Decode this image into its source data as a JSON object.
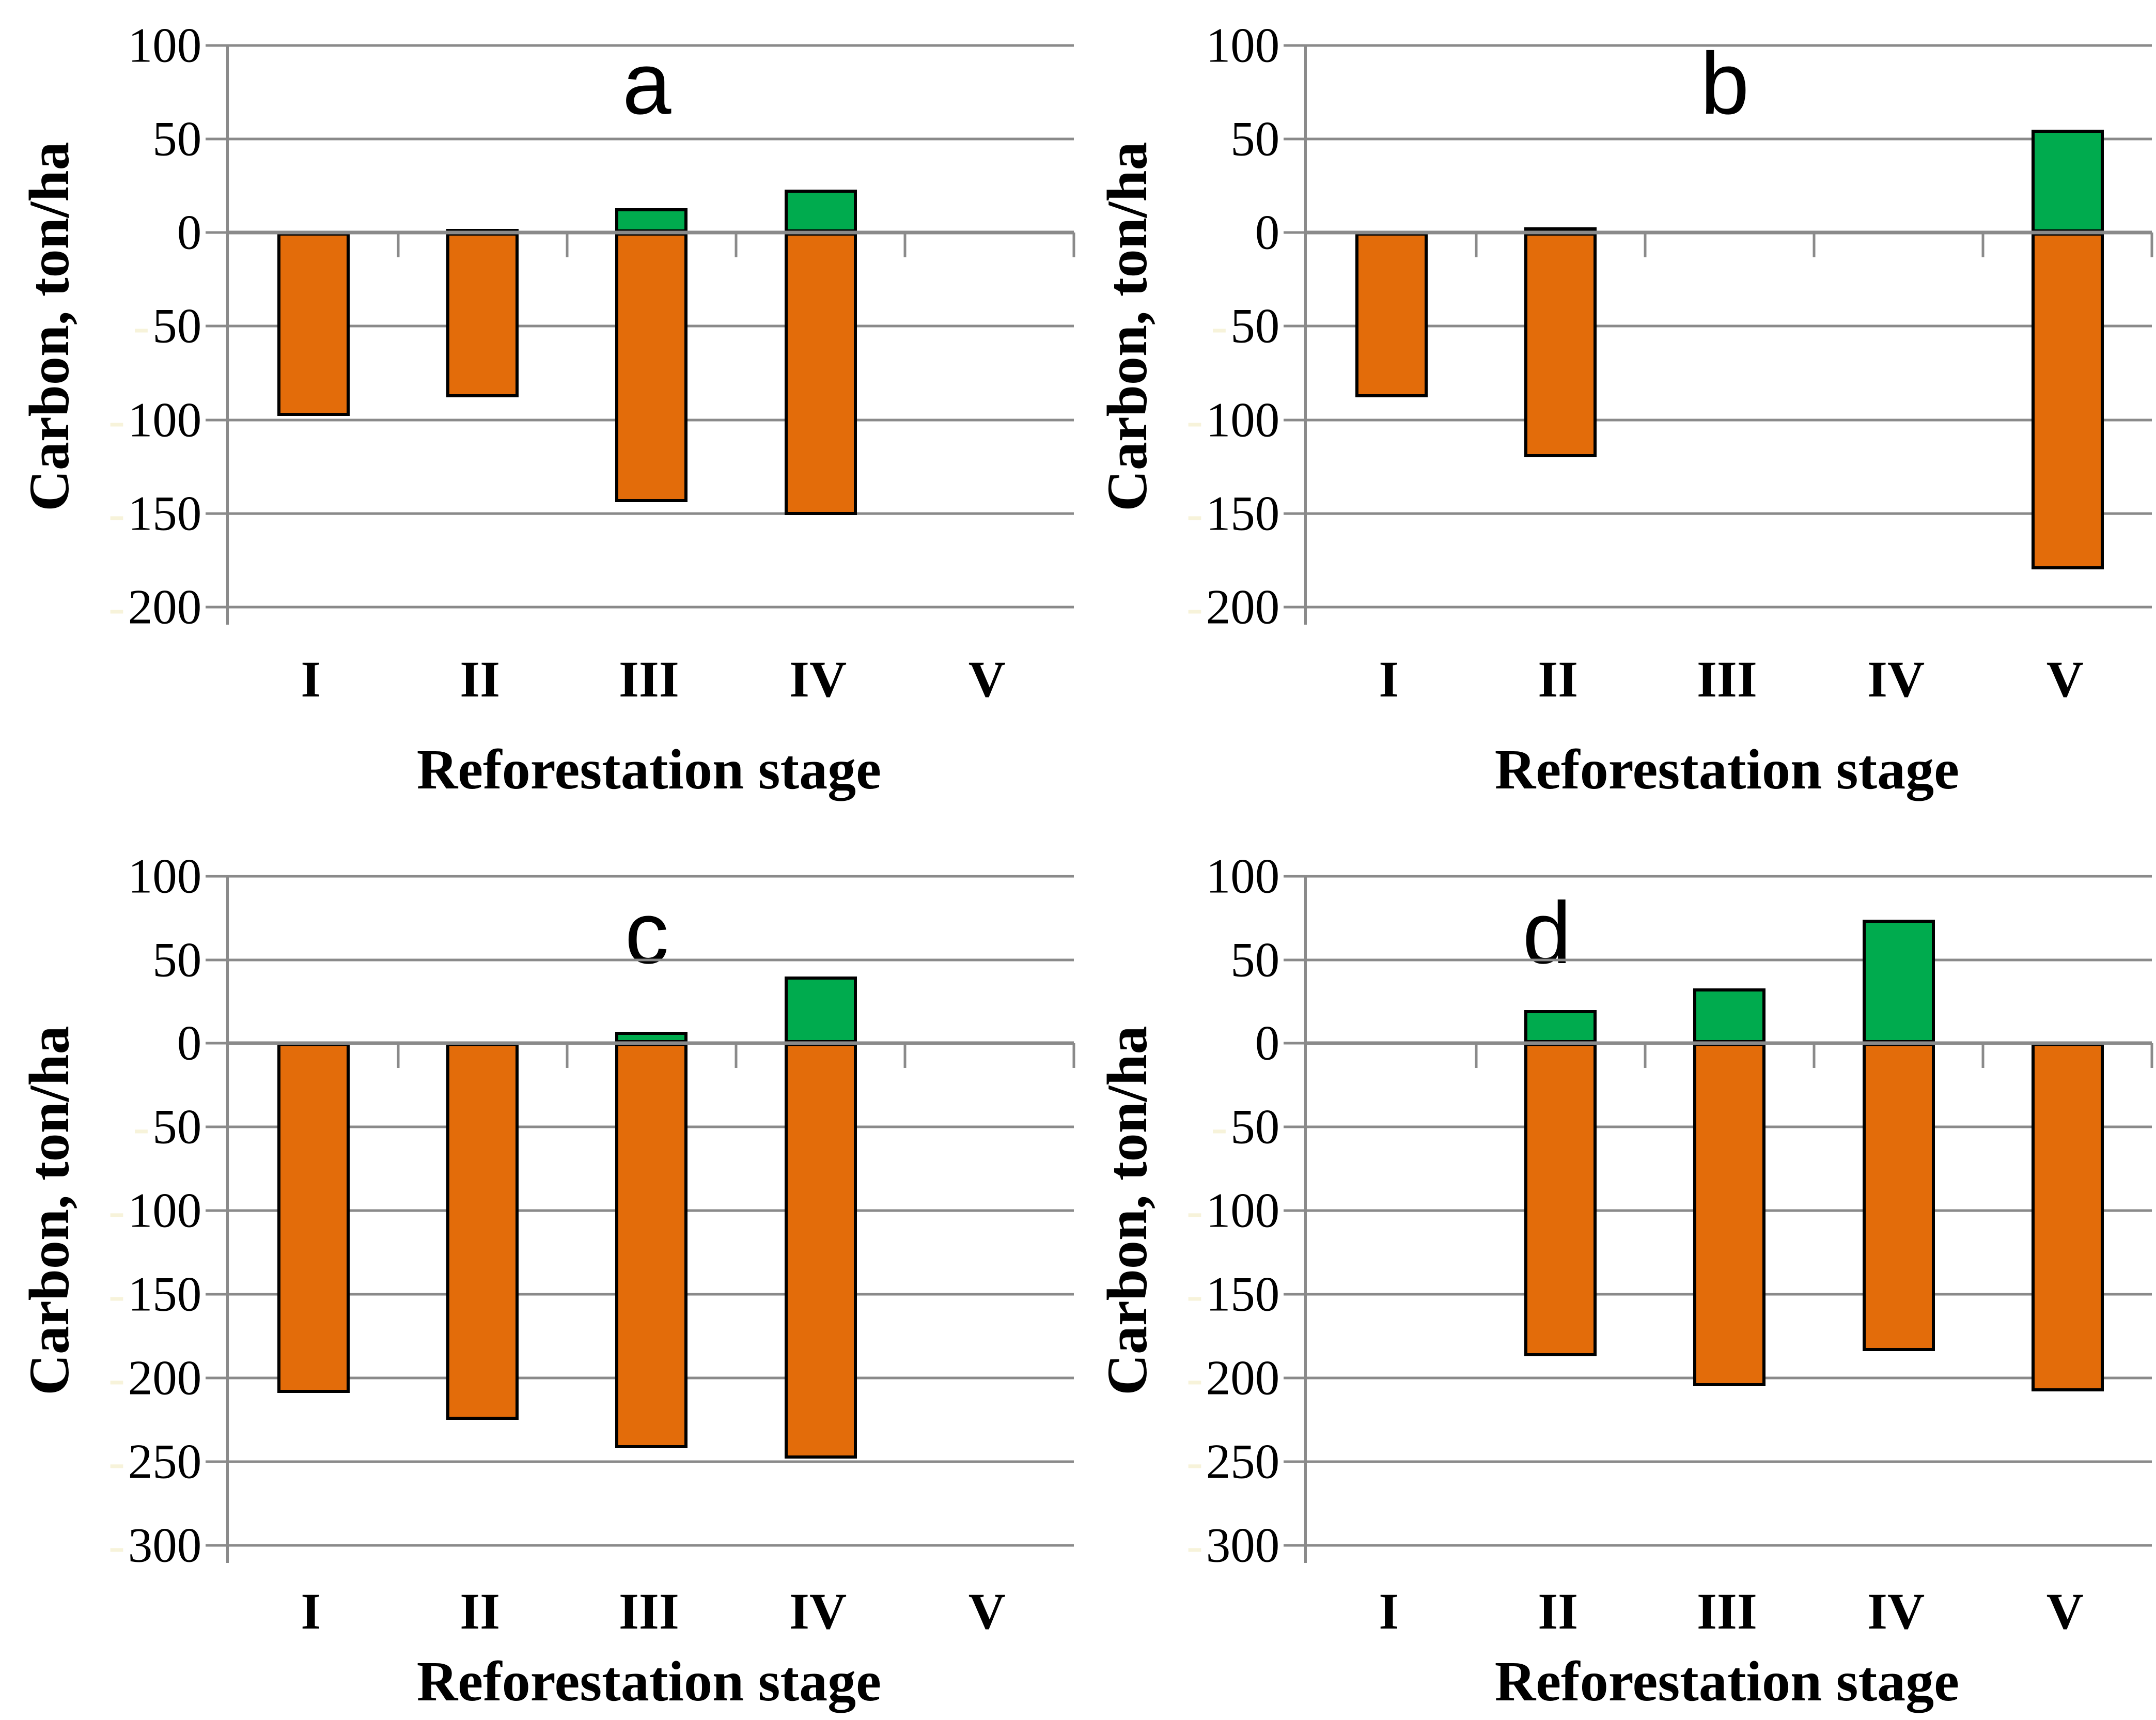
{
  "figure": {
    "ylabel": "Carbon, ton/ha",
    "xlabel": "Reforestation stage",
    "categories": [
      "I",
      "II",
      "III",
      "IV",
      "V"
    ],
    "panels": [
      "a",
      "b",
      "c",
      "d"
    ],
    "colors": {
      "green": "#00AB4E",
      "orange": "#E36C0A",
      "gridline": "#8A8A8A",
      "bar_outline": "#000000",
      "text": "#000000",
      "negative_minus": "#F7F3DA",
      "background": "#FFFFFF"
    }
  },
  "chart_data": [
    {
      "type": "bar",
      "panel": "a",
      "stacked": true,
      "grid": true,
      "legend": "none",
      "xlabel": "Reforestation stage",
      "ylabel": "Carbon, ton/ha",
      "categories": [
        "I",
        "II",
        "III",
        "IV",
        "V"
      ],
      "ylim": [
        -200,
        100
      ],
      "yticks": [
        100,
        50,
        0,
        -50,
        -100,
        -150,
        -200
      ],
      "series": [
        {
          "name": "green",
          "color": "#00AB4E",
          "values": [
            1,
            2,
            13,
            23,
            0
          ]
        },
        {
          "name": "orange",
          "color": "#E36C0A",
          "values": [
            -98,
            -88,
            -144,
            -151,
            0
          ]
        }
      ]
    },
    {
      "type": "bar",
      "panel": "b",
      "stacked": true,
      "grid": true,
      "legend": "none",
      "xlabel": "Reforestation stage",
      "ylabel": "Carbon, ton/ha",
      "categories": [
        "I",
        "II",
        "III",
        "IV",
        "V"
      ],
      "ylim": [
        -200,
        100
      ],
      "yticks": [
        100,
        50,
        0,
        -50,
        -100,
        -150,
        -200
      ],
      "series": [
        {
          "name": "green",
          "color": "#00AB4E",
          "values": [
            1,
            3,
            0,
            0,
            55
          ]
        },
        {
          "name": "orange",
          "color": "#E36C0A",
          "values": [
            -88,
            -120,
            0,
            0,
            -180
          ]
        }
      ]
    },
    {
      "type": "bar",
      "panel": "c",
      "stacked": true,
      "grid": true,
      "legend": "none",
      "xlabel": "Reforestation stage",
      "ylabel": "Carbon, ton/ha",
      "categories": [
        "I",
        "II",
        "III",
        "IV",
        "V"
      ],
      "ylim": [
        -300,
        100
      ],
      "yticks": [
        100,
        50,
        0,
        -50,
        -100,
        -150,
        -200,
        -250,
        -300
      ],
      "series": [
        {
          "name": "green",
          "color": "#00AB4E",
          "values": [
            1,
            1,
            7,
            40,
            0
          ]
        },
        {
          "name": "orange",
          "color": "#E36C0A",
          "values": [
            -209,
            -225,
            -242,
            -248,
            0
          ]
        }
      ]
    },
    {
      "type": "bar",
      "panel": "d",
      "stacked": true,
      "grid": true,
      "legend": "none",
      "xlabel": "Reforestation stage",
      "ylabel": "Carbon, ton/ha",
      "categories": [
        "I",
        "II",
        "III",
        "IV",
        "V"
      ],
      "ylim": [
        -300,
        100
      ],
      "yticks": [
        100,
        50,
        0,
        -50,
        -100,
        -150,
        -200,
        -250,
        -300
      ],
      "series": [
        {
          "name": "green",
          "color": "#00AB4E",
          "values": [
            0,
            20,
            33,
            74,
            0
          ]
        },
        {
          "name": "orange",
          "color": "#E36C0A",
          "values": [
            0,
            -187,
            -205,
            -184,
            -208
          ]
        }
      ]
    }
  ]
}
